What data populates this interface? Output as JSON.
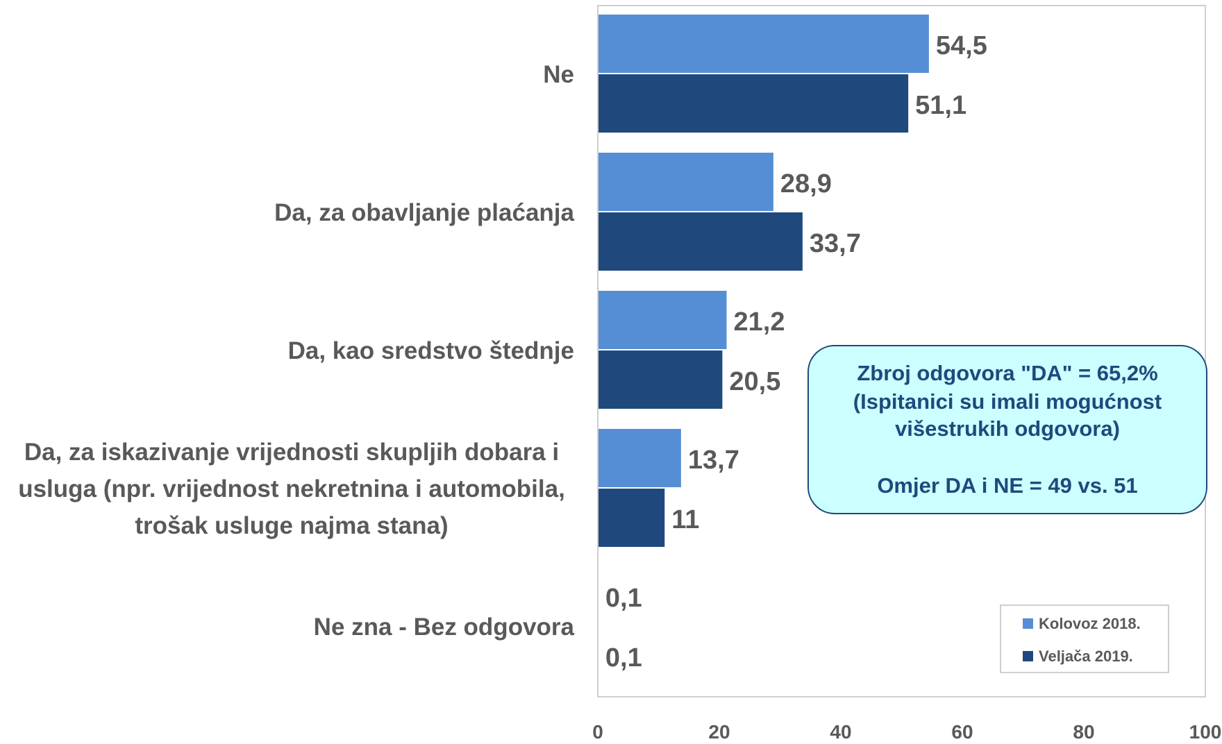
{
  "chart_data": {
    "type": "bar",
    "orientation": "horizontal",
    "categories": [
      "Ne",
      "Da, za obavljanje plaćanja",
      "Da, kao sredstvo štednje",
      "Da, za iskazivanje vrijednosti skupljih dobara i usluga (npr. vrijednost nekretnina i automobila, trošak usluge najma stana)",
      "Ne zna - Bez odgovora"
    ],
    "category_label_lines": [
      [
        "Ne"
      ],
      [
        "Da, za obavljanje plaćanja"
      ],
      [
        "Da, kao sredstvo štednje"
      ],
      [
        "Da, za iskazivanje vrijednosti skupljih dobara i",
        "usluga (npr. vrijednost nekretnina i automobila,",
        "trošak usluge najma stana)"
      ],
      [
        "Ne zna - Bez odgovora"
      ]
    ],
    "series": [
      {
        "name": "Kolovoz 2018.",
        "color": "#558ed5",
        "values": [
          54.5,
          28.9,
          21.2,
          13.7,
          0.1
        ],
        "labels": [
          "54,5",
          "28,9",
          "21,2",
          "13,7",
          "0,1"
        ]
      },
      {
        "name": "Veljača 2019.",
        "color": "#1f497d",
        "values": [
          51.1,
          33.7,
          20.5,
          11,
          0.1
        ],
        "labels": [
          "51,1",
          "33,7",
          "20,5",
          "11",
          "0,1"
        ]
      }
    ],
    "xlim": [
      0,
      100
    ],
    "xticks": [
      0,
      20,
      40,
      60,
      80,
      100
    ],
    "title": "",
    "xlabel": "",
    "ylabel": "",
    "grid": false,
    "legend_position": "bottom-right",
    "annotation": {
      "lines": [
        "Zbroj odgovora \"DA\" = 65,2%",
        "(Ispitanici su imali mogućnost",
        "višestrukih odgovora)",
        "",
        "Omjer DA i NE = 49 vs. 51"
      ],
      "fill_color": "#ccffff",
      "border_color": "#1f497d",
      "text_color": "#1f497d"
    },
    "colors": {
      "label_text": "#595959",
      "plot_border": "#bfbfbf"
    }
  }
}
